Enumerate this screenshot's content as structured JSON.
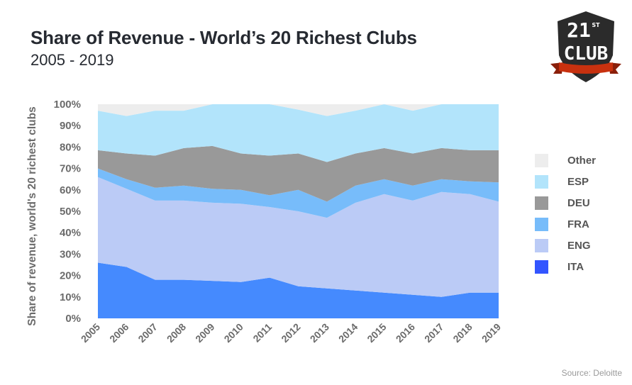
{
  "header": {
    "title": "Share of Revenue - World’s 20 Richest Clubs",
    "subtitle": "2005 - 2019"
  },
  "logo": {
    "line1": "21",
    "superscript": "ST",
    "line2": "CLUB",
    "shield_color": "#2b2b2b",
    "ribbon_color": "#c8310f"
  },
  "source": "Source: Deloitte",
  "chart_data": {
    "type": "area",
    "stacked": true,
    "title": "Share of Revenue - World’s 20 Richest Clubs",
    "subtitle": "2005 - 2019",
    "xlabel": "",
    "ylabel": "Share of revenue, world's 20 richest clubs",
    "ylim": [
      0,
      100
    ],
    "yticks": [
      "0%",
      "10%",
      "20%",
      "30%",
      "40%",
      "50%",
      "60%",
      "70%",
      "80%",
      "90%",
      "100%"
    ],
    "x": [
      "2005",
      "2006",
      "2007",
      "2008",
      "2009",
      "2010",
      "2011",
      "2012",
      "2013",
      "2014",
      "2015",
      "2016",
      "2017",
      "2018",
      "2019"
    ],
    "grid": false,
    "legend_position": "right",
    "series": [
      {
        "name": "ITA",
        "color": "#458afe",
        "swatch": "#3355ff",
        "values": [
          26,
          24,
          18,
          18,
          17.5,
          17,
          19,
          15,
          14,
          13,
          12,
          11,
          10,
          12,
          12
        ]
      },
      {
        "name": "ENG",
        "color": "#bbcbf6",
        "swatch": "#bbcbf6",
        "values": [
          40,
          36.5,
          37,
          37,
          36.5,
          36.5,
          33,
          35,
          33,
          41,
          46,
          44,
          49,
          46,
          42.5
        ]
      },
      {
        "name": "FRA",
        "color": "#77bcfa",
        "swatch": "#77bcfa",
        "values": [
          4,
          4.5,
          6,
          7,
          6.5,
          6.5,
          5.5,
          10,
          7.5,
          8,
          7,
          7,
          6,
          6,
          9
        ]
      },
      {
        "name": "DEU",
        "color": "#999999",
        "swatch": "#999999",
        "values": [
          8.5,
          12,
          15,
          17.5,
          20,
          17,
          18.5,
          17,
          18.5,
          15,
          14.5,
          15,
          14.5,
          14.5,
          15
        ]
      },
      {
        "name": "ESP",
        "color": "#b2e4fb",
        "swatch": "#b2e4fb",
        "values": [
          18.5,
          17.5,
          21,
          17.5,
          19.5,
          23,
          24,
          20.5,
          21.5,
          20,
          20.5,
          20,
          20.5,
          21.5,
          21.5
        ]
      },
      {
        "name": "Other",
        "color": "#ededed",
        "swatch": "#ededed",
        "values": [
          3,
          5.5,
          3,
          3,
          0,
          0,
          0,
          2.5,
          5.5,
          3,
          0,
          3,
          0,
          0,
          0
        ]
      }
    ],
    "legend_order": [
      "Other",
      "ESP",
      "DEU",
      "FRA",
      "ENG",
      "ITA"
    ]
  }
}
